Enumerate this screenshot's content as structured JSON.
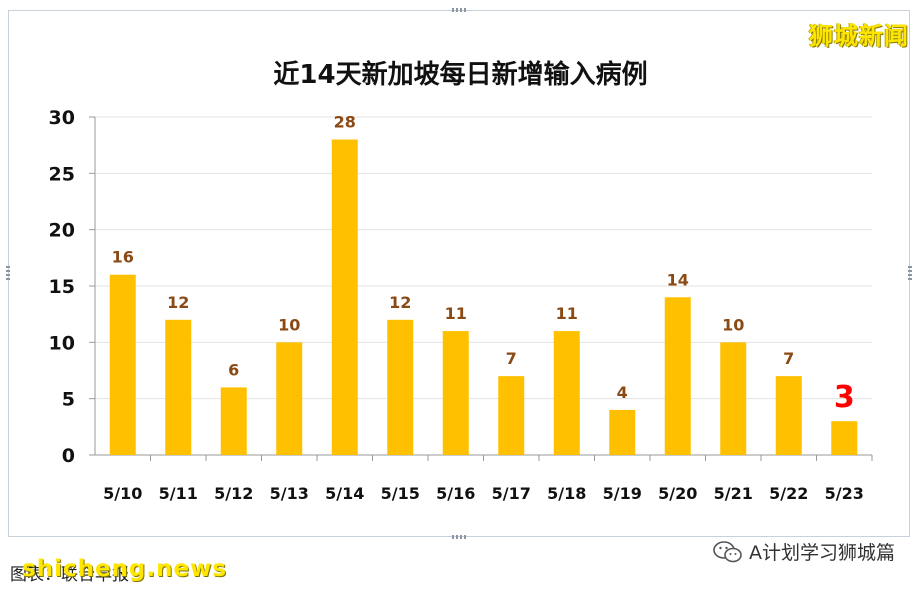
{
  "brand": "狮城新闻",
  "footer": {
    "caption": "图表：联合早报",
    "watermark": "shicheng.news",
    "wechat_label": "A计划学习狮城篇"
  },
  "chart_data": {
    "type": "bar",
    "title": "近14天新加坡每日新增输入病例",
    "categories": [
      "5/10",
      "5/11",
      "5/12",
      "5/13",
      "5/14",
      "5/15",
      "5/16",
      "5/17",
      "5/18",
      "5/19",
      "5/20",
      "5/21",
      "5/22",
      "5/23"
    ],
    "values": [
      16,
      12,
      6,
      10,
      28,
      12,
      11,
      7,
      11,
      4,
      14,
      10,
      7,
      3
    ],
    "ylim": [
      0,
      30
    ],
    "yticks": [
      0,
      5,
      10,
      15,
      20,
      25,
      30
    ],
    "grid": true,
    "colors": {
      "bar": "#ffc000",
      "label": "#8b4a14",
      "highlight_label": "#ff0000"
    },
    "highlight_index": 13
  }
}
